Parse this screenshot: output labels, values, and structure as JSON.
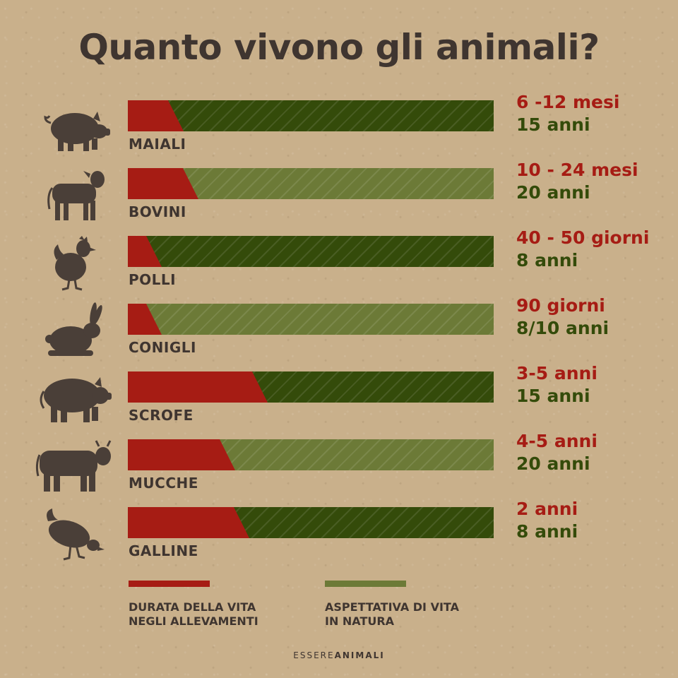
{
  "title": "Quanto vivono gli animali?",
  "colors": {
    "farm": "#a61c14",
    "nature_dark": "#344b0a",
    "nature_light": "#6c7a37",
    "text_dark": "#3f3530",
    "silhouette": "#4a3f38"
  },
  "chart_data": {
    "type": "bar",
    "orientation": "horizontal",
    "stacked": true,
    "title": "Quanto vivono gli animali?",
    "categories": [
      "MAIALI",
      "BOVINI",
      "POLLI",
      "CONIGLI",
      "SCROFE",
      "MUCCHE",
      "GALLINE"
    ],
    "series": [
      {
        "name": "DURATA DELLA VITA NEGLI ALLEVAMENTI",
        "values": [
          0.11,
          0.15,
          0.05,
          0.05,
          0.34,
          0.25,
          0.29
        ]
      },
      {
        "name": "ASPETTATIVA DI VITA IN NATURA",
        "values": [
          1,
          1,
          1,
          1,
          1,
          1,
          1
        ]
      }
    ],
    "value_unit": "fraction of natural life expectancy",
    "rows": [
      {
        "label": "MAIALI",
        "icon": "pig-icon",
        "farm_label": "6 -12 mesi",
        "nature_label": "15 anni",
        "farm_fraction": 0.11,
        "nature_style": "dark"
      },
      {
        "label": "BOVINI",
        "icon": "calf-icon",
        "farm_label": "10 - 24 mesi",
        "nature_label": "20 anni",
        "farm_fraction": 0.15,
        "nature_style": "light"
      },
      {
        "label": "POLLI",
        "icon": "chicken-icon",
        "farm_label": "40 - 50 giorni",
        "nature_label": "8 anni",
        "farm_fraction": 0.05,
        "nature_style": "dark"
      },
      {
        "label": "CONIGLI",
        "icon": "rabbit-icon",
        "farm_label": "90 giorni",
        "nature_label": "8/10 anni",
        "farm_fraction": 0.05,
        "nature_style": "light"
      },
      {
        "label": "SCROFE",
        "icon": "sow-icon",
        "farm_label": "3-5 anni",
        "nature_label": "15 anni",
        "farm_fraction": 0.34,
        "nature_style": "dark"
      },
      {
        "label": "MUCCHE",
        "icon": "cow-icon",
        "farm_label": "4-5 anni",
        "nature_label": "20 anni",
        "farm_fraction": 0.25,
        "nature_style": "light"
      },
      {
        "label": "GALLINE",
        "icon": "hen-icon",
        "farm_label": "2 anni",
        "nature_label": "8 anni",
        "farm_fraction": 0.29,
        "nature_style": "dark"
      }
    ]
  },
  "legend": {
    "farm_line1": "DURATA DELLA VITA",
    "farm_line2": "NEGLI ALLEVAMENTI",
    "nature_line1": "ASPETTATIVA DI VITA",
    "nature_line2": "IN NATURA"
  },
  "brand": {
    "prefix": "ESSERE",
    "suffix": "ANIMALI"
  }
}
